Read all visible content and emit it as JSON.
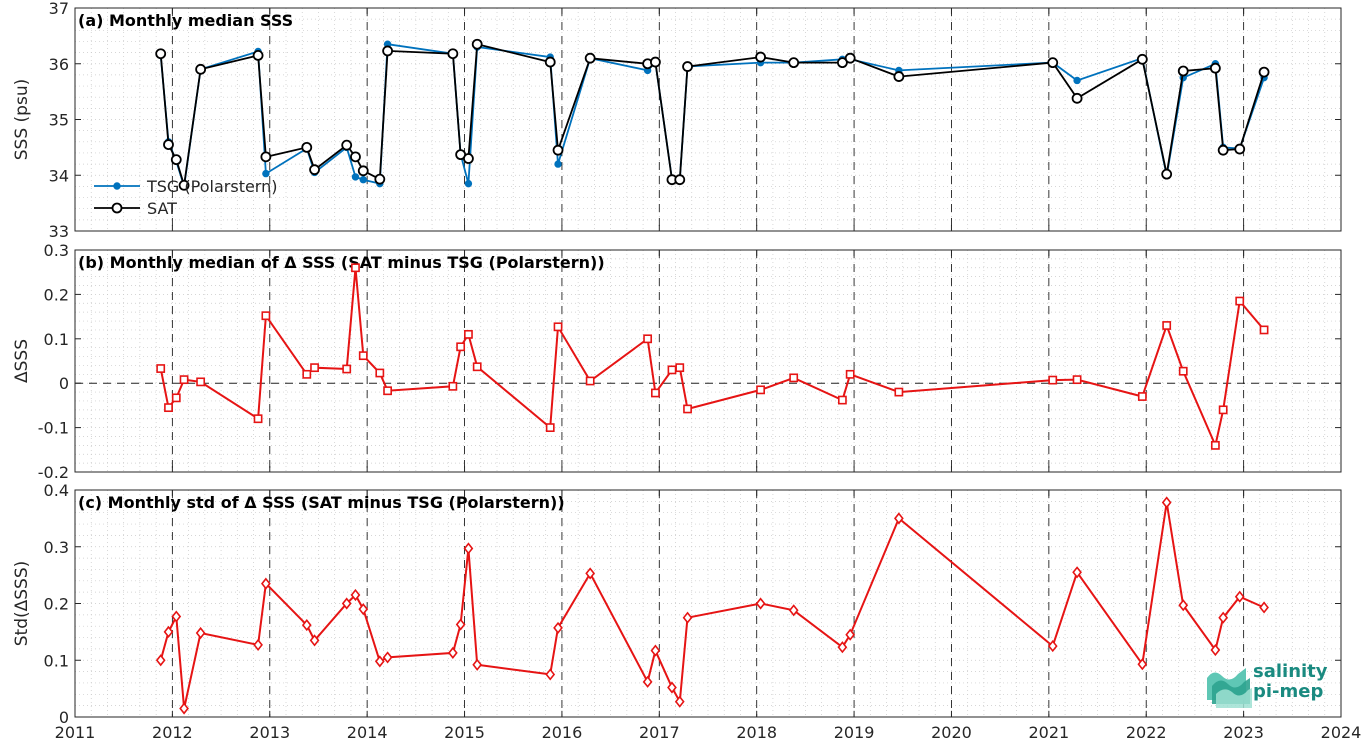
{
  "colors": {
    "tsg": "#0072BD",
    "sat": "#000000",
    "delta": "#E61414",
    "axis": "#262626",
    "logo": "#1a8a80"
  },
  "logo": {
    "line1": "salinity",
    "line2": "pi-mep"
  },
  "x_ticks": [
    "2011",
    "2012",
    "2013",
    "2014",
    "2015",
    "2016",
    "2017",
    "2018",
    "2019",
    "2020",
    "2021",
    "2022",
    "2023",
    "2024"
  ],
  "chart_data": [
    {
      "type": "line",
      "title": "(a) Monthly median SSS",
      "xlabel": "",
      "ylabel": "SSS (psu)",
      "xlim": [
        2011,
        2024
      ],
      "ylim": [
        33,
        37
      ],
      "y_ticks": [
        "33",
        "34",
        "35",
        "36",
        "37"
      ],
      "y_tick_values": [
        33,
        34,
        35,
        36,
        37
      ],
      "grid": true,
      "legend_position": "lower-left",
      "series": [
        {
          "name": "TSG (Polarstern)",
          "marker": "dot",
          "x": [
            2011.88,
            2011.96,
            2012.04,
            2012.12,
            2012.29,
            2012.88,
            2012.96,
            2013.38,
            2013.46,
            2013.79,
            2013.88,
            2013.96,
            2014.13,
            2014.21,
            2014.88,
            2014.96,
            2015.04,
            2015.13,
            2015.88,
            2015.96,
            2016.29,
            2016.88,
            2016.96,
            2017.13,
            2017.21,
            2017.29,
            2018.04,
            2018.38,
            2018.88,
            2018.96,
            2019.46,
            2021.04,
            2021.29,
            2021.96,
            2022.21,
            2022.38,
            2022.71,
            2022.79,
            2022.96,
            2023.21
          ],
          "y": [
            36.15,
            34.6,
            34.25,
            33.8,
            35.9,
            36.22,
            34.03,
            34.48,
            34.05,
            34.5,
            33.97,
            33.92,
            33.85,
            36.35,
            36.18,
            34.38,
            33.85,
            36.3,
            36.12,
            34.2,
            36.1,
            35.88,
            36.02,
            33.93,
            33.92,
            35.95,
            36.02,
            36.02,
            36.08,
            36.08,
            35.88,
            36.02,
            35.7,
            36.1,
            33.99,
            35.75,
            36.0,
            34.5,
            34.48,
            35.75
          ]
        },
        {
          "name": "SAT",
          "marker": "circle",
          "x": [
            2011.88,
            2011.96,
            2012.04,
            2012.12,
            2012.29,
            2012.88,
            2012.96,
            2013.38,
            2013.46,
            2013.79,
            2013.88,
            2013.96,
            2014.13,
            2014.21,
            2014.88,
            2014.96,
            2015.04,
            2015.13,
            2015.88,
            2015.96,
            2016.29,
            2016.88,
            2016.96,
            2017.13,
            2017.21,
            2017.29,
            2018.04,
            2018.38,
            2018.88,
            2018.96,
            2019.46,
            2021.04,
            2021.29,
            2021.96,
            2022.21,
            2022.38,
            2022.71,
            2022.79,
            2022.96,
            2023.21
          ],
          "y": [
            36.18,
            34.55,
            34.28,
            33.82,
            35.9,
            36.15,
            34.33,
            34.5,
            34.1,
            34.54,
            34.33,
            34.08,
            33.93,
            36.23,
            36.18,
            34.37,
            34.3,
            36.35,
            36.03,
            34.45,
            36.1,
            36.0,
            36.03,
            33.92,
            33.92,
            35.95,
            36.12,
            36.02,
            36.02,
            36.1,
            35.77,
            36.02,
            35.38,
            36.08,
            34.02,
            35.87,
            35.92,
            34.45,
            34.47,
            35.85
          ]
        }
      ]
    },
    {
      "type": "line",
      "title": "(b) Monthly median of Δ SSS (SAT minus TSG (Polarstern))",
      "xlabel": "",
      "ylabel": "ΔSSS",
      "xlim": [
        2011,
        2024
      ],
      "ylim": [
        -0.2,
        0.3
      ],
      "y_ticks": [
        "-0.2",
        "-0.1",
        "0",
        "0.1",
        "0.2",
        "0.3"
      ],
      "y_tick_values": [
        -0.2,
        -0.1,
        0,
        0.1,
        0.2,
        0.3
      ],
      "reference_line_y": 0,
      "grid": true,
      "series": [
        {
          "marker": "square",
          "x": [
            2011.88,
            2011.96,
            2012.04,
            2012.12,
            2012.29,
            2012.88,
            2012.96,
            2013.38,
            2013.46,
            2013.79,
            2013.88,
            2013.96,
            2014.13,
            2014.21,
            2014.88,
            2014.96,
            2015.04,
            2015.13,
            2015.88,
            2015.96,
            2016.29,
            2016.88,
            2016.96,
            2017.13,
            2017.21,
            2017.29,
            2018.04,
            2018.38,
            2018.88,
            2018.96,
            2019.46,
            2021.04,
            2021.29,
            2021.96,
            2022.21,
            2022.38,
            2022.71,
            2022.79,
            2022.96,
            2023.21
          ],
          "y": [
            0.033,
            -0.055,
            -0.033,
            0.008,
            0.003,
            -0.08,
            0.152,
            0.02,
            0.035,
            0.032,
            0.26,
            0.062,
            0.023,
            -0.017,
            -0.007,
            0.082,
            0.11,
            0.037,
            -0.1,
            0.127,
            0.005,
            0.1,
            -0.022,
            0.03,
            0.035,
            -0.058,
            -0.015,
            0.012,
            -0.038,
            0.02,
            -0.02,
            0.007,
            0.008,
            -0.03,
            0.13,
            0.027,
            -0.14,
            -0.06,
            0.185,
            0.12
          ]
        }
      ]
    },
    {
      "type": "line",
      "title": "(c) Monthly std of Δ SSS (SAT minus TSG (Polarstern))",
      "xlabel": "",
      "ylabel": "Std(ΔSSS)",
      "xlim": [
        2011,
        2024
      ],
      "ylim": [
        0,
        0.4
      ],
      "y_ticks": [
        "0",
        "0.1",
        "0.2",
        "0.3",
        "0.4"
      ],
      "y_tick_values": [
        0,
        0.1,
        0.2,
        0.3,
        0.4
      ],
      "grid": true,
      "series": [
        {
          "marker": "diamond",
          "x": [
            2011.88,
            2011.96,
            2012.04,
            2012.12,
            2012.29,
            2012.88,
            2012.96,
            2013.38,
            2013.46,
            2013.79,
            2013.88,
            2013.96,
            2014.13,
            2014.21,
            2014.88,
            2014.96,
            2015.04,
            2015.13,
            2015.88,
            2015.96,
            2016.29,
            2016.88,
            2016.96,
            2017.13,
            2017.21,
            2017.29,
            2018.04,
            2018.38,
            2018.88,
            2018.96,
            2019.46,
            2021.04,
            2021.29,
            2021.96,
            2022.21,
            2022.38,
            2022.71,
            2022.79,
            2022.96,
            2023.21
          ],
          "y": [
            0.1,
            0.15,
            0.177,
            0.015,
            0.148,
            0.127,
            0.235,
            0.162,
            0.135,
            0.2,
            0.215,
            0.19,
            0.098,
            0.105,
            0.113,
            0.163,
            0.297,
            0.092,
            0.075,
            0.157,
            0.253,
            0.062,
            0.117,
            0.052,
            0.027,
            0.175,
            0.2,
            0.188,
            0.123,
            0.145,
            0.35,
            0.125,
            0.255,
            0.093,
            0.378,
            0.197,
            0.118,
            0.175,
            0.212,
            0.193
          ]
        }
      ]
    }
  ]
}
